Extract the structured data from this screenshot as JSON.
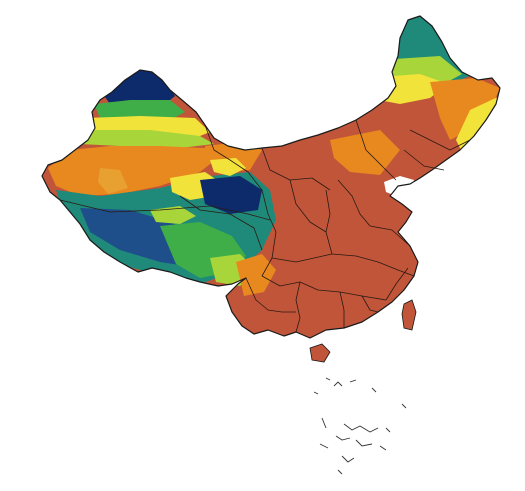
{
  "map": {
    "background_color": "#ffffff",
    "palette": {
      "rust": "#c1553a",
      "orange": "#e8891f",
      "yellow": "#f2e33b",
      "lime": "#a8d63a",
      "green": "#3fae48",
      "teal": "#1f8a7a",
      "blue": "#1e4f8a",
      "navy": "#0d2a6a",
      "water": "#ffffff",
      "boundary": "#2a1a12"
    }
  }
}
